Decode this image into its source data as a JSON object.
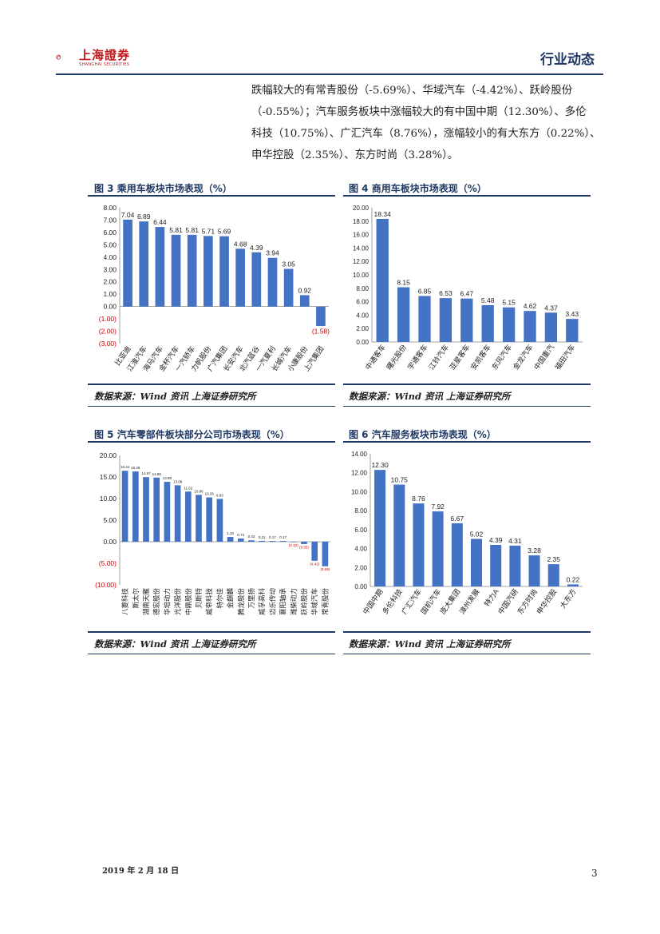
{
  "header": {
    "logo_text": "上海證券",
    "logo_sub": "SHANGHAI SECURITIES",
    "section": "行业动态"
  },
  "paragraph": [
    "跌幅较大的有常青股份（-5.69%）、华域汽车（-4.42%）、跃岭股份",
    "（-0.55%）；汽车服务板块中涨幅较大的有中国中期（12.30%）、多伦",
    "科技（10.75%）、广汇汽车（8.76%），涨幅较小的有大东方（0.22%）、",
    "申华控股（2.35%）、东方时尚（3.28%）。"
  ],
  "figures": [
    {
      "title": "图 3 乘用车板块市场表现（%）",
      "source": "数据来源：Wind 资讯 上海证券研究所"
    },
    {
      "title": "图 4 商用车板块市场表现（%）",
      "source": "数据来源：Wind 资讯 上海证券研究所"
    },
    {
      "title": "图 5 汽车零部件板块部分公司市场表现（%）",
      "source": "数据来源：Wind 资讯 上海证券研究所"
    },
    {
      "title": "图 6 汽车服务板块市场表现（%）",
      "source": "数据来源：Wind 资讯 上海证券研究所"
    }
  ],
  "chart_data": [
    {
      "type": "bar",
      "categories": [
        "比亚迪",
        "江淮汽车",
        "海马汽车",
        "金杯汽车",
        "一汽轿车",
        "力帆股份",
        "广汽集团",
        "长安汽车",
        "北汽蓝谷",
        "一汽夏利",
        "长城汽车",
        "小康股份",
        "上汽集团"
      ],
      "values": [
        7.04,
        6.89,
        6.44,
        5.81,
        5.81,
        5.71,
        5.69,
        4.68,
        4.39,
        3.94,
        3.05,
        0.92,
        -1.58
      ],
      "value_labels": [
        "7.04",
        "6.89",
        "6.44",
        "5.81",
        "5.81",
        "5.71",
        "5.69",
        "4.68",
        "4.39",
        "3.94",
        "3.05",
        "0.92",
        "(1.58)"
      ],
      "yticks": [
        "8.00",
        "7.00",
        "6.00",
        "5.00",
        "4.00",
        "3.00",
        "2.00",
        "1.00",
        "0.00",
        "(1.00)",
        "(2.00)",
        "(3.00)"
      ],
      "ylim": [
        -3,
        8
      ],
      "bar_color": "#4472c4",
      "negative_label_color": "#d00000"
    },
    {
      "type": "bar",
      "categories": [
        "中通客车",
        "曙光股份",
        "宇通客车",
        "江铃汽车",
        "亚星客车",
        "安凯客车",
        "东风汽车",
        "金龙汽车",
        "中国重汽",
        "福田汽车"
      ],
      "values": [
        18.34,
        8.15,
        6.85,
        6.53,
        6.47,
        5.48,
        5.15,
        4.62,
        4.37,
        3.43
      ],
      "value_labels": [
        "18.34",
        "8.15",
        "6.85",
        "6.53",
        "6.47",
        "5.48",
        "5.15",
        "4.62",
        "4.37",
        "3.43"
      ],
      "yticks": [
        "20.00",
        "18.00",
        "16.00",
        "14.00",
        "12.00",
        "10.00",
        "8.00",
        "6.00",
        "4.00",
        "2.00",
        "0.00"
      ],
      "ylim": [
        0,
        20
      ],
      "bar_color": "#4472c4"
    },
    {
      "type": "bar",
      "categories": [
        "八菱科技",
        "斯太尔",
        "湖南天雁",
        "德宏股份",
        "华培动力",
        "光洋股份",
        "中鼎股份",
        "贝斯特",
        "威帝科技",
        "特尔佳",
        "金麒麟",
        "腾龙股份",
        "万里扬",
        "威孚高科",
        "迈乐传动",
        "襄阳轴承",
        "潍柴动力",
        "跃岭股份",
        "华域汽车",
        "常青股份"
      ],
      "values": [
        16.44,
        16.28,
        14.97,
        14.86,
        13.89,
        13.08,
        11.62,
        10.86,
        10.26,
        9.93,
        1.1,
        0.74,
        0.33,
        0.21,
        0.17,
        0.17,
        -0.12,
        -0.55,
        -4.42,
        -5.69
      ],
      "value_labels": [
        "16.44",
        "16.28",
        "14.97",
        "14.86",
        "13.89",
        "13.08",
        "11.62",
        "10.86",
        "10.26",
        "9.93",
        "1.10",
        "0.74",
        "0.33",
        "0.21",
        "0.17",
        "0.17",
        "(0.12)",
        "(0.55)",
        "(4.42)",
        "(5.69)"
      ],
      "yticks": [
        "20.00",
        "15.00",
        "10.00",
        "5.00",
        "0.00",
        "(5.00)",
        "(10.00)"
      ],
      "ylim": [
        -10,
        20
      ],
      "bar_color": "#4472c4",
      "negative_label_color": "#d00000"
    },
    {
      "type": "bar",
      "categories": [
        "中国中期",
        "多伦科技",
        "广汇汽车",
        "国机汽车",
        "庞大集团",
        "漳州发展",
        "特力A",
        "中国汽研",
        "东方时尚",
        "申华控股",
        "大东方"
      ],
      "values": [
        12.3,
        10.75,
        8.76,
        7.92,
        6.67,
        5.02,
        4.39,
        4.31,
        3.28,
        2.35,
        0.22
      ],
      "value_labels": [
        "12.30",
        "10.75",
        "8.76",
        "7.92",
        "6.67",
        "5.02",
        "4.39",
        "4.31",
        "3.28",
        "2.35",
        "0.22"
      ],
      "yticks": [
        "14.00",
        "12.00",
        "10.00",
        "8.00",
        "6.00",
        "4.00",
        "2.00",
        "0.00"
      ],
      "ylim": [
        0,
        14
      ],
      "bar_color": "#4472c4"
    }
  ],
  "footer": {
    "date": "2019 年 2 月 18 日",
    "page": "3"
  }
}
